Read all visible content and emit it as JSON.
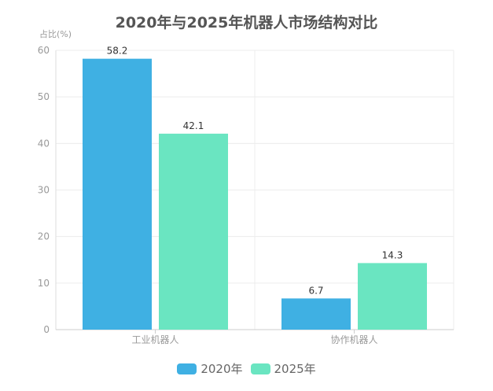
{
  "chart_data": {
    "type": "bar",
    "title": "2020年与2025年机器人市场结构对比",
    "ylabel": "占比(%)",
    "xlabel": "",
    "categories": [
      "工业机器人",
      "协作机器人"
    ],
    "series": [
      {
        "name": "2020年",
        "values": [
          58.2,
          6.7
        ],
        "color": "#3fb0e3"
      },
      {
        "name": "2025年",
        "values": [
          42.1,
          14.3
        ],
        "color": "#6ae5c1"
      }
    ],
    "ylim": [
      0,
      60
    ],
    "yticks": [
      "0",
      "10",
      "20",
      "30",
      "40",
      "50",
      "60"
    ],
    "grid": true,
    "legend_position": "bottom"
  }
}
